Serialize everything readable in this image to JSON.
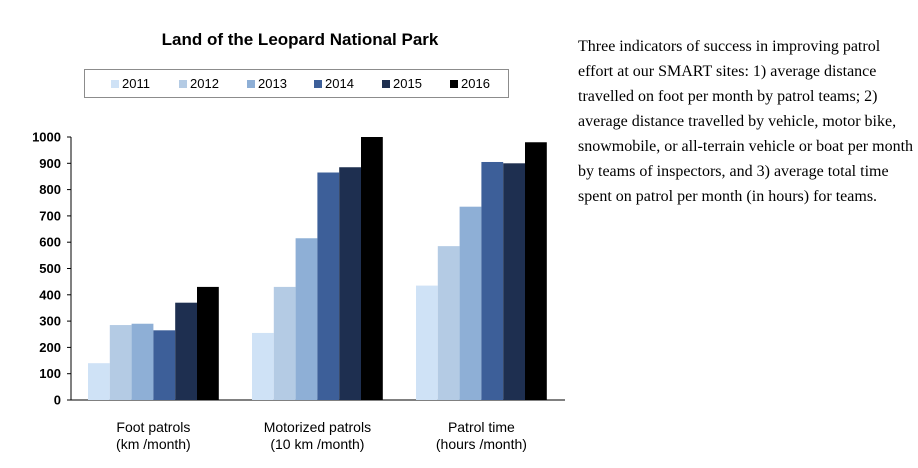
{
  "chart_data": {
    "type": "bar",
    "title": "Land of the Leopard National Park",
    "categories": [
      [
        "Foot patrols",
        "(km /month)"
      ],
      [
        "Motorized patrols",
        "(10 km /month)"
      ],
      [
        "Patrol time",
        "(hours /month)"
      ]
    ],
    "series": [
      {
        "name": "2011",
        "color": "#cfe2f6",
        "values": [
          140,
          255,
          435
        ]
      },
      {
        "name": "2012",
        "color": "#b4cbe4",
        "values": [
          285,
          430,
          585
        ]
      },
      {
        "name": "2013",
        "color": "#8eafd6",
        "values": [
          290,
          615,
          735
        ]
      },
      {
        "name": "2014",
        "color": "#3d5f99",
        "values": [
          265,
          865,
          905
        ]
      },
      {
        "name": "2015",
        "color": "#1e2f50",
        "values": [
          370,
          885,
          900
        ]
      },
      {
        "name": "2016",
        "color": "#000000",
        "values": [
          430,
          1000,
          980
        ]
      }
    ],
    "yticks": [
      "0",
      "100",
      "200",
      "300",
      "400",
      "500",
      "600",
      "700",
      "800",
      "900",
      "1000"
    ],
    "ylim": [
      0,
      1000
    ],
    "xlabel": "",
    "ylabel": "",
    "grid": false,
    "legend": "top"
  },
  "description": "Three indicators of success in improving patrol effort at our SMART sites: 1) average distance travelled on foot per month by patrol teams; 2) average distance travelled by vehicle, motor bike, snowmobile, or all-terrain vehicle or boat per month by teams of inspectors, and 3) average total time spent on patrol per month (in hours) for teams."
}
